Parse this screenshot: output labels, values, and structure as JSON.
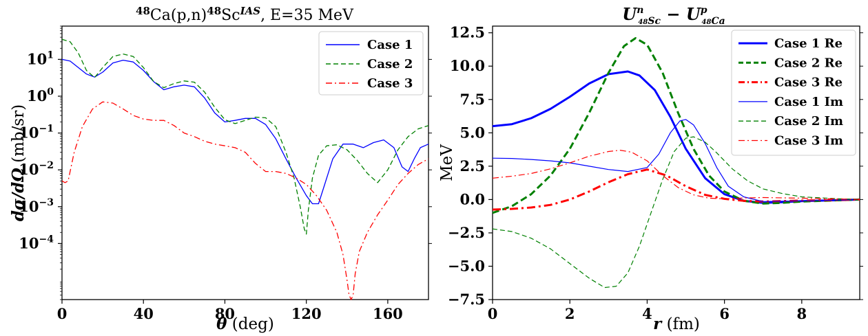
{
  "chart_data": [
    {
      "type": "line",
      "title": "⁴⁸Ca(p,n)⁴⁸Sc^IAS, E=35 MeV",
      "title_parts": {
        "a1": "48",
        "a2": "Ca(p,n)",
        "a3": "48",
        "a4": "Sc",
        "a5": "IAS",
        "a6": ", E=35 MeV"
      },
      "xlabel": "θ (deg)",
      "xlabel_parts": {
        "sym": "θ",
        "unit": " (deg)"
      },
      "ylabel": "dσ/dΩ (mb/sr)",
      "ylabel_parts": {
        "sym": "dσ/dΩ",
        "unit": " (mb/sr)"
      },
      "yscale": "log",
      "xlim": [
        0,
        180
      ],
      "ylim": [
        3e-06,
        80
      ],
      "x_ticks": [
        0,
        40,
        80,
        120,
        160
      ],
      "x_tick_labels": [
        "0",
        "40",
        "80",
        "120",
        "160"
      ],
      "y_ticks": [
        10,
        1,
        0.1,
        0.01,
        0.001,
        0.0001
      ],
      "y_tick_labels": [
        {
          "base": "10",
          "exp": "1"
        },
        {
          "base": "10",
          "exp": "0"
        },
        {
          "base": "10",
          "exp": "−1"
        },
        {
          "base": "10",
          "exp": "−2"
        },
        {
          "base": "10",
          "exp": "−3"
        },
        {
          "base": "10",
          "exp": "−4"
        }
      ],
      "legend_position": "top-right",
      "series": [
        {
          "name": "Case 1",
          "color": "#0000ff",
          "style": "solid",
          "x": [
            0,
            4,
            8,
            12,
            16,
            20,
            25,
            30,
            35,
            40,
            45,
            50,
            55,
            60,
            65,
            70,
            75,
            80,
            85,
            90,
            95,
            100,
            105,
            110,
            115,
            120,
            123,
            126,
            129,
            133,
            138,
            143,
            148,
            153,
            158,
            163,
            167,
            170,
            173,
            176,
            180
          ],
          "y": [
            10,
            9,
            6,
            4,
            3.3,
            4.5,
            8,
            9.5,
            8.5,
            5,
            2.5,
            1.5,
            1.8,
            2,
            1.8,
            0.9,
            0.35,
            0.2,
            0.22,
            0.25,
            0.25,
            0.17,
            0.07,
            0.02,
            0.006,
            0.002,
            0.0012,
            0.0012,
            0.004,
            0.02,
            0.05,
            0.05,
            0.04,
            0.055,
            0.065,
            0.04,
            0.012,
            0.009,
            0.02,
            0.04,
            0.05
          ]
        },
        {
          "name": "Case 2",
          "color": "#008000",
          "style": "dashed",
          "x": [
            0,
            4,
            8,
            12,
            16,
            20,
            25,
            30,
            35,
            40,
            45,
            50,
            55,
            60,
            65,
            70,
            75,
            80,
            85,
            90,
            95,
            100,
            105,
            110,
            114,
            117,
            119,
            120,
            121,
            123,
            126,
            130,
            135,
            140,
            145,
            150,
            155,
            160,
            165,
            170,
            175,
            180
          ],
          "y": [
            35,
            30,
            15,
            5,
            3.2,
            6,
            12,
            14,
            12,
            6,
            2.5,
            1.7,
            2.2,
            2.6,
            2.4,
            1.3,
            0.5,
            0.23,
            0.18,
            0.22,
            0.27,
            0.26,
            0.15,
            0.03,
            0.006,
            0.001,
            0.00025,
            0.00018,
            0.0008,
            0.006,
            0.025,
            0.045,
            0.048,
            0.035,
            0.018,
            0.008,
            0.0045,
            0.01,
            0.035,
            0.08,
            0.13,
            0.16
          ]
        },
        {
          "name": "Case 3",
          "color": "#ff0000",
          "style": "dashdot",
          "x": [
            0,
            1.5,
            3,
            6,
            10,
            15,
            20,
            25,
            30,
            35,
            40,
            45,
            50,
            55,
            60,
            65,
            70,
            75,
            80,
            85,
            90,
            95,
            100,
            105,
            110,
            115,
            120,
            125,
            130,
            135,
            138,
            140,
            141,
            142,
            143,
            144,
            146,
            150,
            155,
            160,
            165,
            170,
            175,
            180
          ],
          "y": [
            0.005,
            0.0045,
            0.005,
            0.03,
            0.15,
            0.45,
            0.7,
            0.65,
            0.45,
            0.3,
            0.24,
            0.22,
            0.22,
            0.16,
            0.1,
            0.08,
            0.06,
            0.05,
            0.045,
            0.04,
            0.03,
            0.015,
            0.009,
            0.009,
            0.008,
            0.006,
            0.004,
            0.002,
            0.0008,
            0.0002,
            5e-05,
            1e-05,
            4e-06,
            3e-06,
            4e-06,
            1.5e-05,
            6e-05,
            0.0002,
            0.0006,
            0.0015,
            0.004,
            0.008,
            0.014,
            0.02
          ]
        }
      ]
    },
    {
      "type": "line",
      "title": "U^n_48Sc − U^p_48Ca",
      "title_parts": {
        "u1": "U",
        "sup1": "n",
        "sub_mass1": "48",
        "sub_el1": "Sc",
        "minus": " − ",
        "u2": "U",
        "sup2": "p",
        "sub_mass2": "48",
        "sub_el2": "Ca"
      },
      "xlabel": "r (fm)",
      "xlabel_parts": {
        "sym": "r",
        "unit": " (fm)"
      },
      "ylabel": "MeV",
      "xlim": [
        0,
        9.5
      ],
      "ylim": [
        -7.5,
        13.0
      ],
      "x_ticks": [
        0,
        2,
        4,
        6,
        8
      ],
      "x_tick_labels": [
        "0",
        "2",
        "4",
        "6",
        "8"
      ],
      "y_ticks": [
        12.5,
        10.0,
        7.5,
        5.0,
        2.5,
        0.0,
        -2.5,
        -5.0,
        -7.5
      ],
      "y_tick_labels": [
        "12.5",
        "10.0",
        "7.5",
        "5.0",
        "2.5",
        "0.0",
        "−2.5",
        "−5.0",
        "−7.5"
      ],
      "legend_position": "top-right",
      "series": [
        {
          "name": "Case 1 Re",
          "color": "#0000ff",
          "style": "solid",
          "width": "thick",
          "x": [
            0,
            0.5,
            1.0,
            1.5,
            2.0,
            2.5,
            3.0,
            3.5,
            3.8,
            4.2,
            4.6,
            5.0,
            5.5,
            6.0,
            6.5,
            7.0,
            7.5,
            8.0,
            9.0,
            9.5
          ],
          "y": [
            5.5,
            5.65,
            6.1,
            6.8,
            7.7,
            8.7,
            9.4,
            9.6,
            9.3,
            8.2,
            6.2,
            3.8,
            1.6,
            0.4,
            -0.1,
            -0.25,
            -0.2,
            -0.12,
            -0.04,
            0.0
          ]
        },
        {
          "name": "Case 2 Re",
          "color": "#008000",
          "style": "dashed",
          "width": "thick",
          "x": [
            0,
            0.5,
            1.0,
            1.5,
            2.0,
            2.5,
            3.0,
            3.4,
            3.7,
            4.0,
            4.4,
            4.8,
            5.2,
            5.6,
            6.0,
            6.5,
            7.0,
            7.5,
            8.0,
            9.0,
            9.5
          ],
          "y": [
            -1.0,
            -0.5,
            0.4,
            1.8,
            3.8,
            6.5,
            9.5,
            11.5,
            12.1,
            11.6,
            9.5,
            6.5,
            3.8,
            1.8,
            0.6,
            -0.1,
            -0.3,
            -0.25,
            -0.15,
            -0.05,
            0.0
          ]
        },
        {
          "name": "Case 3 Re",
          "color": "#ff0000",
          "style": "dashdot",
          "width": "thick",
          "x": [
            0,
            0.5,
            1.0,
            1.5,
            2.0,
            2.5,
            3.0,
            3.5,
            4.0,
            4.5,
            5.0,
            5.5,
            6.0,
            6.5,
            7.0,
            8.0,
            9.0,
            9.5
          ],
          "y": [
            -0.75,
            -0.7,
            -0.6,
            -0.4,
            0.0,
            0.6,
            1.3,
            1.9,
            2.25,
            1.8,
            1.0,
            0.35,
            0.05,
            -0.1,
            -0.15,
            -0.08,
            -0.03,
            0.0
          ]
        },
        {
          "name": "Case 1 Im",
          "color": "#0000ff",
          "style": "solid",
          "width": "thin",
          "x": [
            0,
            0.5,
            1.0,
            1.5,
            2.0,
            2.5,
            3.0,
            3.5,
            4.0,
            4.3,
            4.6,
            4.85,
            5.0,
            5.2,
            5.5,
            5.8,
            6.1,
            6.5,
            7.0,
            8.0,
            9.0,
            9.5
          ],
          "y": [
            3.1,
            3.08,
            3.0,
            2.9,
            2.75,
            2.5,
            2.25,
            2.1,
            2.4,
            3.4,
            5.0,
            5.9,
            6.0,
            5.6,
            4.2,
            2.4,
            1.0,
            0.2,
            -0.15,
            -0.1,
            -0.04,
            0.0
          ]
        },
        {
          "name": "Case 2 Im",
          "color": "#008000",
          "style": "dashed",
          "width": "thin",
          "x": [
            0,
            0.5,
            1.0,
            1.5,
            2.0,
            2.5,
            2.9,
            3.2,
            3.5,
            3.8,
            4.1,
            4.4,
            4.7,
            5.0,
            5.2,
            5.5,
            5.8,
            6.2,
            6.6,
            7.0,
            7.5,
            8.0,
            9.0,
            9.5
          ],
          "y": [
            -2.2,
            -2.4,
            -2.9,
            -3.7,
            -4.8,
            -5.9,
            -6.6,
            -6.5,
            -5.5,
            -3.5,
            -1.0,
            1.5,
            3.6,
            4.6,
            4.7,
            4.3,
            3.5,
            2.3,
            1.4,
            0.8,
            0.45,
            0.2,
            0.05,
            0.0
          ]
        },
        {
          "name": "Case 3 Im",
          "color": "#ff0000",
          "style": "dashdot",
          "width": "thin",
          "x": [
            0,
            0.5,
            1.0,
            1.5,
            2.0,
            2.5,
            3.0,
            3.3,
            3.6,
            4.0,
            4.4,
            4.8,
            5.2,
            5.6,
            6.0,
            6.5,
            7.0,
            8.0,
            9.0,
            9.5
          ],
          "y": [
            1.6,
            1.75,
            1.95,
            2.3,
            2.75,
            3.25,
            3.6,
            3.7,
            3.55,
            2.9,
            1.8,
            0.9,
            0.35,
            0.1,
            0.05,
            0.12,
            0.15,
            0.1,
            0.04,
            0.0
          ]
        }
      ]
    }
  ]
}
